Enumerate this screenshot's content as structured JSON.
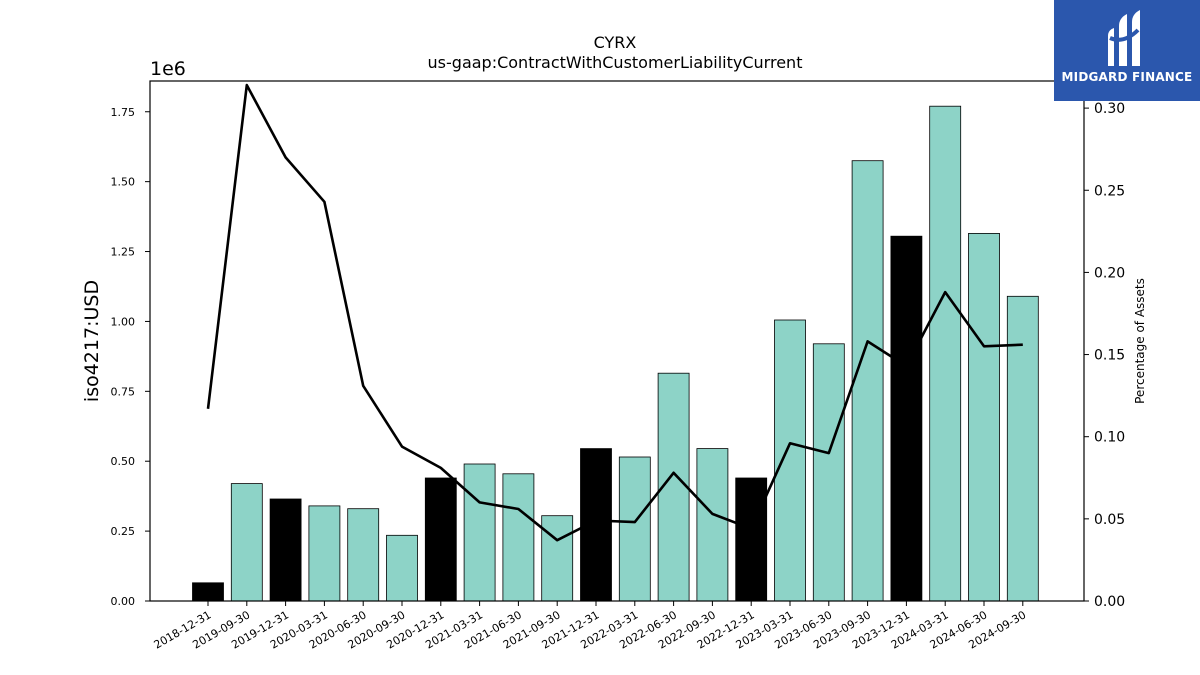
{
  "brand": {
    "name": "MIDGARD FINANCE",
    "logo_icon": "midgard-m-logo-icon"
  },
  "chart_data": {
    "type": "bar",
    "title": "CYRX",
    "subtitle": "us-gaap:ContractWithCustomerLiabilityCurrent",
    "xlabel": "",
    "ylabel": "iso4217:USD",
    "y_offset_label": "1e6",
    "y2label": "Percentage of Assets",
    "ylim": [
      0,
      1.86
    ],
    "y2lim": [
      0,
      0.3165
    ],
    "yticks": [
      "0.00",
      "0.25",
      "0.50",
      "0.75",
      "1.00",
      "1.25",
      "1.50",
      "1.75"
    ],
    "y2ticks": [
      "0.00",
      "0.05",
      "0.10",
      "0.15",
      "0.20",
      "0.25",
      "0.30"
    ],
    "grid": false,
    "categories": [
      "2018-12-31",
      "2019-09-30",
      "2019-12-31",
      "2020-03-31",
      "2020-06-30",
      "2020-09-30",
      "2020-12-31",
      "2021-03-31",
      "2021-06-30",
      "2021-09-30",
      "2021-12-31",
      "2022-03-31",
      "2022-06-30",
      "2022-09-30",
      "2022-12-31",
      "2023-03-31",
      "2023-06-30",
      "2023-09-30",
      "2023-12-31",
      "2024-03-31",
      "2024-06-30",
      "2024-09-30"
    ],
    "series": [
      {
        "type": "bar",
        "values": [
          0.065,
          0.42,
          0.365,
          0.34,
          0.33,
          0.235,
          0.44,
          0.49,
          0.455,
          0.305,
          0.545,
          0.515,
          0.815,
          0.545,
          0.44,
          1.005,
          0.92,
          1.575,
          1.305,
          1.77,
          1.315,
          1.09
        ],
        "colors": [
          "#000000",
          "#8dd3c7",
          "#000000",
          "#8dd3c7",
          "#8dd3c7",
          "#8dd3c7",
          "#000000",
          "#8dd3c7",
          "#8dd3c7",
          "#8dd3c7",
          "#000000",
          "#8dd3c7",
          "#8dd3c7",
          "#8dd3c7",
          "#000000",
          "#8dd3c7",
          "#8dd3c7",
          "#8dd3c7",
          "#000000",
          "#8dd3c7",
          "#8dd3c7",
          "#8dd3c7"
        ]
      },
      {
        "type": "line",
        "axis": "right",
        "color": "#000000",
        "values": [
          0.117,
          0.314,
          0.27,
          0.243,
          0.131,
          0.094,
          0.081,
          0.06,
          0.056,
          0.037,
          0.049,
          0.048,
          0.078,
          0.053,
          0.044,
          0.096,
          0.09,
          0.158,
          0.143,
          0.188,
          0.155,
          0.156
        ]
      }
    ]
  }
}
